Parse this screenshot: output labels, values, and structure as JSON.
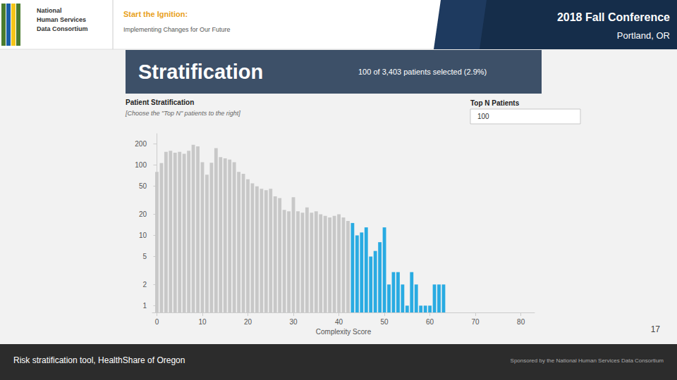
{
  "chart_data": {
    "type": "bar",
    "title": "Patient Stratification",
    "subtitle": "[Choose the \"Top N\" patients to the right]",
    "xlabel": "Complexity Score",
    "x": [
      0,
      1,
      2,
      3,
      4,
      5,
      6,
      7,
      8,
      9,
      10,
      11,
      12,
      13,
      14,
      15,
      16,
      17,
      18,
      19,
      20,
      21,
      22,
      23,
      24,
      25,
      26,
      27,
      28,
      29,
      30,
      31,
      32,
      33,
      34,
      35,
      36,
      37,
      38,
      39,
      40,
      41,
      42,
      43,
      44,
      45,
      46,
      47,
      48,
      49,
      50,
      51,
      52,
      53,
      54,
      55,
      56,
      57,
      58,
      59,
      60,
      61,
      62,
      63
    ],
    "values": [
      80,
      107,
      155,
      160,
      150,
      155,
      145,
      160,
      195,
      185,
      110,
      73,
      108,
      175,
      130,
      125,
      120,
      110,
      80,
      75,
      63,
      55,
      50,
      46,
      44,
      46,
      36,
      34,
      23,
      22,
      35,
      22,
      21,
      25,
      21,
      22,
      20,
      19,
      18,
      19,
      20,
      18,
      16,
      15,
      10,
      11,
      13,
      5,
      6,
      8,
      13,
      2,
      3,
      3,
      2,
      1,
      3,
      2,
      1,
      1,
      1,
      2,
      2,
      2
    ],
    "colors": [
      "#c8c8c8",
      "#c8c8c8",
      "#c8c8c8",
      "#c8c8c8",
      "#c8c8c8",
      "#c8c8c8",
      "#c8c8c8",
      "#c8c8c8",
      "#c8c8c8",
      "#c8c8c8",
      "#c8c8c8",
      "#c8c8c8",
      "#c8c8c8",
      "#c8c8c8",
      "#c8c8c8",
      "#c8c8c8",
      "#c8c8c8",
      "#c8c8c8",
      "#c8c8c8",
      "#c8c8c8",
      "#c8c8c8",
      "#c8c8c8",
      "#c8c8c8",
      "#c8c8c8",
      "#c8c8c8",
      "#c8c8c8",
      "#c8c8c8",
      "#c8c8c8",
      "#c8c8c8",
      "#c8c8c8",
      "#c8c8c8",
      "#c8c8c8",
      "#c8c8c8",
      "#c8c8c8",
      "#c8c8c8",
      "#c8c8c8",
      "#c8c8c8",
      "#c8c8c8",
      "#c8c8c8",
      "#c8c8c8",
      "#c8c8c8",
      "#c8c8c8",
      "#c8c8c8",
      "#29abe2",
      "#29abe2",
      "#29abe2",
      "#29abe2",
      "#29abe2",
      "#29abe2",
      "#29abe2",
      "#29abe2",
      "#29abe2",
      "#29abe2",
      "#29abe2",
      "#29abe2",
      "#29abe2",
      "#29abe2",
      "#29abe2",
      "#29abe2",
      "#29abe2",
      "#29abe2",
      "#29abe2",
      "#29abe2",
      "#29abe2"
    ],
    "xlim": [
      -1,
      83
    ],
    "xticks": [
      0,
      10,
      20,
      30,
      40,
      50,
      60,
      70,
      80
    ],
    "ylim": [
      0.8,
      280
    ],
    "yticks": [
      1,
      2,
      5,
      10,
      20,
      50,
      100,
      200
    ],
    "log": "y",
    "grid": false,
    "annotations": [
      "2018 Fall Conference",
      "Portland, OR",
      "National",
      "Human Services",
      "Data Consortium",
      "Start the Ignition:",
      "Implementing Changes for Our Future",
      "Stratification",
      "100 of 3,403 patients selected (2.9%)",
      "Top N Patients",
      "100",
      "Risk stratification tool, HealthShare of Oregon",
      "Sponsored by the National Human Services Data Consortium",
      "17"
    ]
  }
}
